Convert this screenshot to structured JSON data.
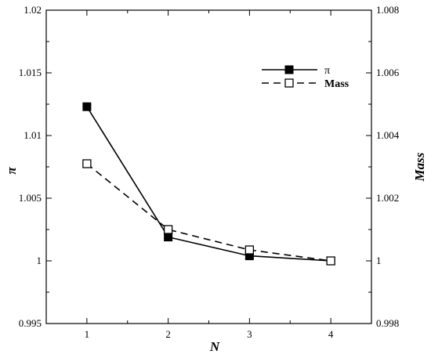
{
  "chart_data": {
    "type": "line",
    "x": [
      1,
      2,
      3,
      4
    ],
    "xlabel": "N",
    "xlim": [
      0.5,
      4.5
    ],
    "x_ticks": [
      "1",
      "2",
      "3",
      "4"
    ],
    "ylabel_left": "π",
    "ylim_left": [
      0.995,
      1.02
    ],
    "y_ticks_left": [
      "0.995",
      "1",
      "1.005",
      "1.01",
      "1.015",
      "1.02"
    ],
    "ylabel_right": "Mass",
    "ylim_right": [
      0.998,
      1.008
    ],
    "y_ticks_right": [
      "0.998",
      "1",
      "1.002",
      "1.004",
      "1.006",
      "1.008"
    ],
    "grid": false,
    "legend_position": "top-right",
    "series": [
      {
        "name": "π",
        "axis": "left",
        "values": [
          1.0123,
          1.0019,
          1.0004,
          1.0
        ],
        "line_style": "solid",
        "marker": "filled-square",
        "color": "#000000"
      },
      {
        "name": "Mass",
        "axis": "right",
        "values": [
          1.0031,
          1.001,
          1.00035,
          1.0
        ],
        "line_style": "dashed",
        "marker": "open-square",
        "color": "#000000"
      }
    ]
  }
}
